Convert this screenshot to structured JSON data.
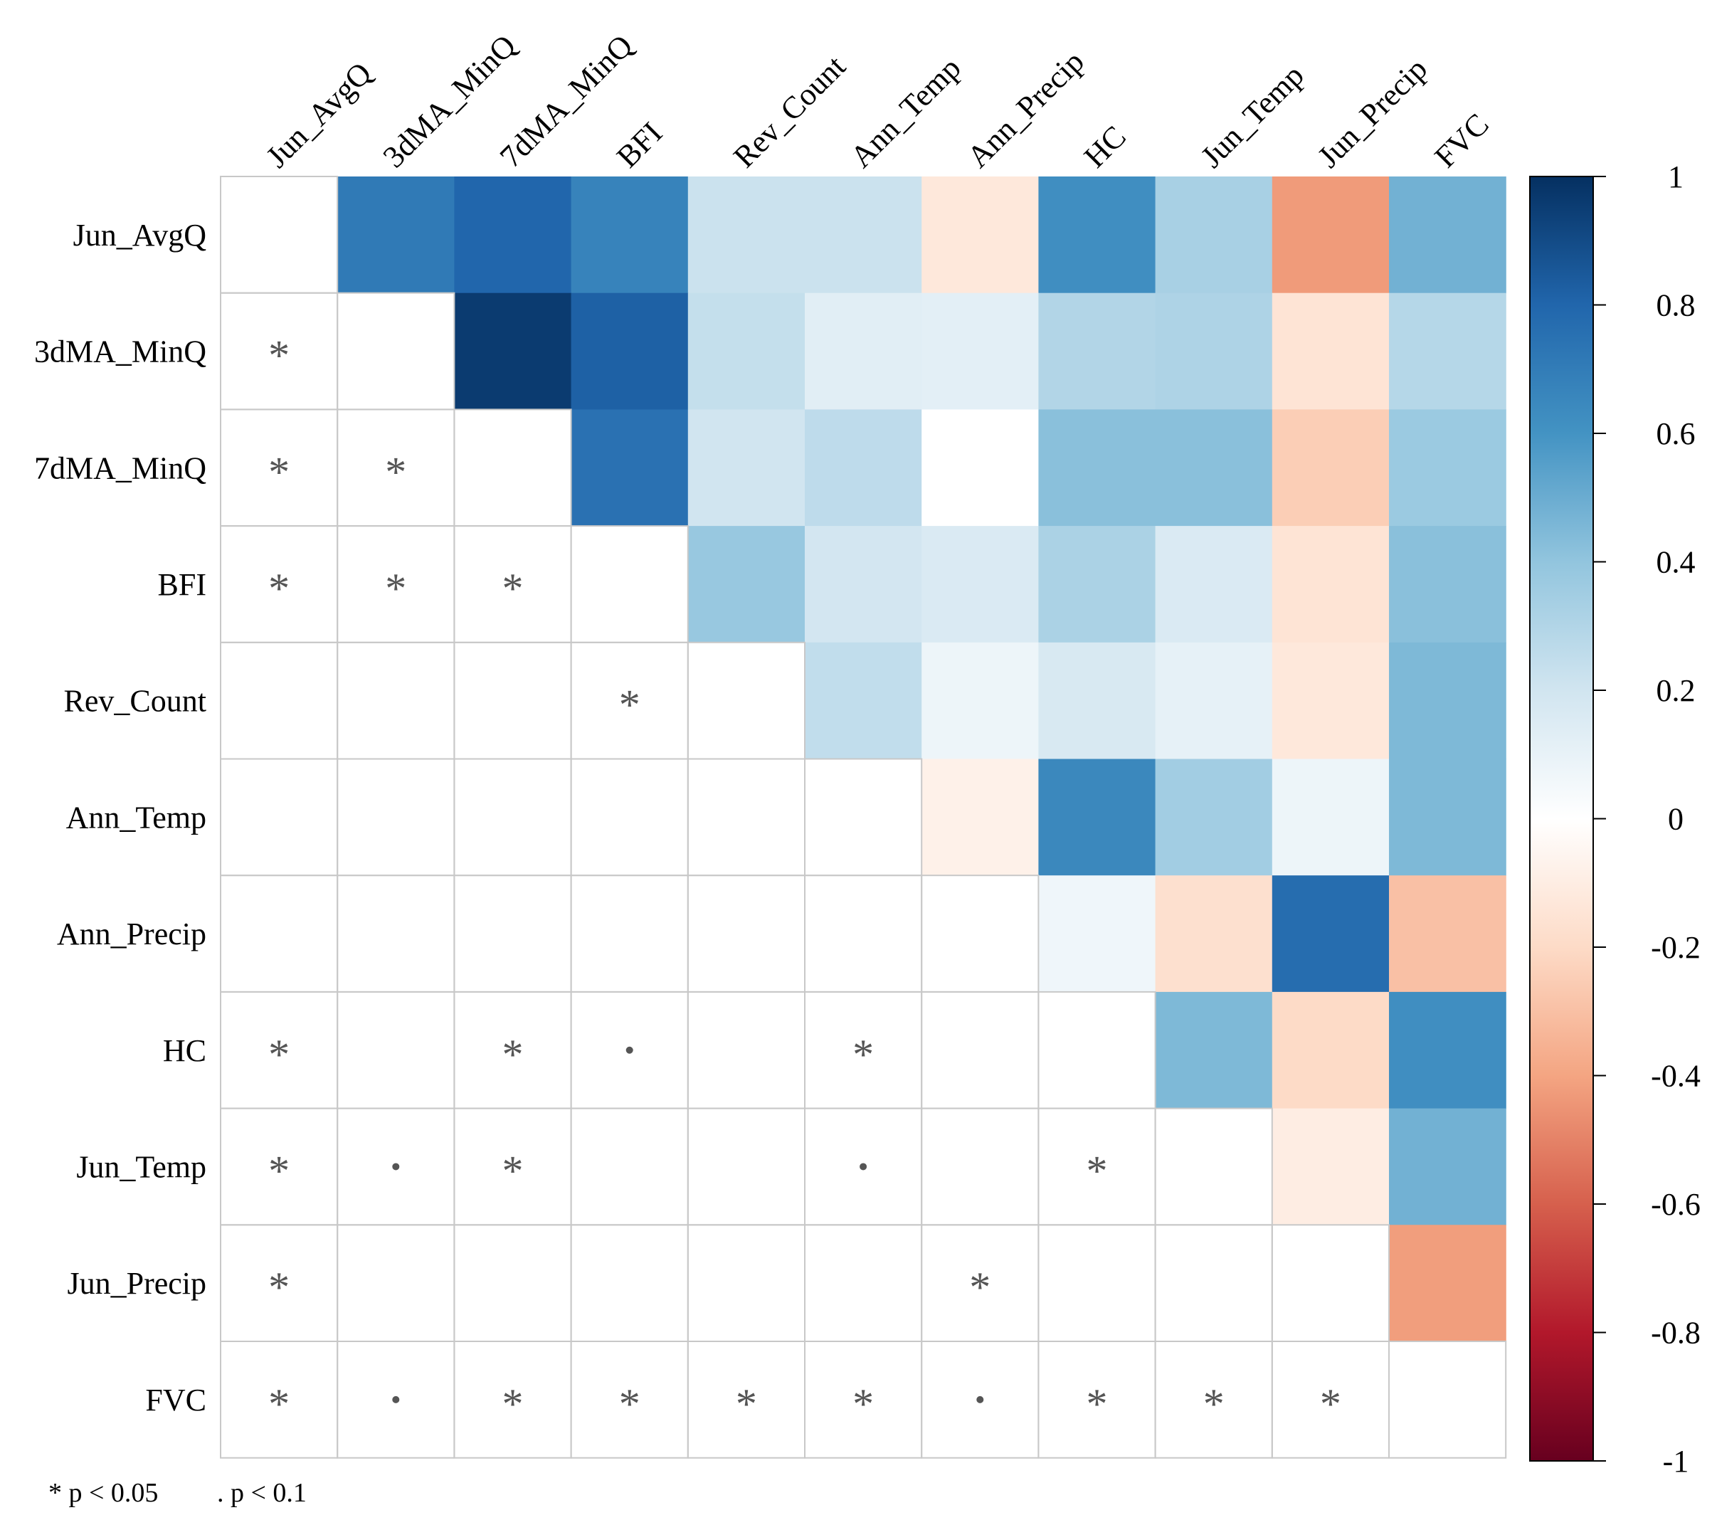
{
  "chart_data": {
    "type": "heatmap",
    "title": "",
    "variables": [
      "Jun_AvgQ",
      "3dMA_MinQ",
      "7dMA_MinQ",
      "BFI",
      "Rev_Count",
      "Ann_Temp",
      "Ann_Precip",
      "HC",
      "Jun_Temp",
      "Jun_Precip",
      "FVC"
    ],
    "upper_triangle_correlations": [
      [
        null,
        0.71,
        0.8,
        0.67,
        0.22,
        0.22,
        -0.13,
        0.62,
        0.33,
        -0.43,
        0.48
      ],
      [
        null,
        null,
        0.96,
        0.82,
        0.24,
        0.13,
        0.12,
        0.3,
        0.31,
        -0.15,
        0.29
      ],
      [
        null,
        null,
        null,
        0.75,
        0.2,
        0.26,
        0.0,
        0.42,
        0.42,
        -0.25,
        0.37
      ],
      [
        null,
        null,
        null,
        null,
        0.38,
        0.19,
        0.16,
        0.32,
        0.16,
        -0.15,
        0.42
      ],
      [
        null,
        null,
        null,
        null,
        null,
        0.25,
        0.08,
        0.17,
        0.11,
        -0.13,
        0.45
      ],
      [
        null,
        null,
        null,
        null,
        null,
        null,
        -0.08,
        0.65,
        0.35,
        0.08,
        0.45
      ],
      [
        null,
        null,
        null,
        null,
        null,
        null,
        null,
        0.07,
        -0.17,
        0.77,
        -0.3
      ],
      [
        null,
        null,
        null,
        null,
        null,
        null,
        null,
        null,
        0.45,
        -0.2,
        0.62
      ],
      [
        null,
        null,
        null,
        null,
        null,
        null,
        null,
        null,
        null,
        -0.1,
        0.48
      ],
      [
        null,
        null,
        null,
        null,
        null,
        null,
        null,
        null,
        null,
        null,
        -0.42
      ],
      [
        null,
        null,
        null,
        null,
        null,
        null,
        null,
        null,
        null,
        null,
        null
      ]
    ],
    "significance_lower_triangle": [
      [
        "",
        "",
        "",
        "",
        "",
        "",
        "",
        "",
        "",
        "",
        ""
      ],
      [
        "*",
        "",
        "",
        "",
        "",
        "",
        "",
        "",
        "",
        "",
        ""
      ],
      [
        "*",
        "*",
        "",
        "",
        "",
        "",
        "",
        "",
        "",
        "",
        ""
      ],
      [
        "*",
        "*",
        "*",
        "",
        "",
        "",
        "",
        "",
        "",
        "",
        ""
      ],
      [
        "",
        "",
        "",
        "*",
        "",
        "",
        "",
        "",
        "",
        "",
        ""
      ],
      [
        "",
        "",
        "",
        "",
        "",
        "",
        "",
        "",
        "",
        "",
        ""
      ],
      [
        "",
        "",
        "",
        "",
        "",
        "",
        "",
        "",
        "",
        "",
        ""
      ],
      [
        "*",
        "",
        "*",
        ".",
        "",
        "*",
        "",
        "",
        "",
        "",
        ""
      ],
      [
        "*",
        ".",
        "*",
        "",
        "",
        ".",
        "",
        "*",
        "",
        "",
        ""
      ],
      [
        "*",
        "",
        "",
        "",
        "",
        "",
        "*",
        "",
        "",
        "",
        ""
      ],
      [
        "*",
        ".",
        "*",
        "*",
        "*",
        "*",
        ".",
        "*",
        "*",
        "*",
        ""
      ]
    ],
    "colorbar": {
      "range": [
        -1,
        1
      ],
      "tick_values": [
        1,
        0.8,
        0.6,
        0.4,
        0.2,
        0,
        -0.2,
        -0.4,
        -0.6,
        -0.8,
        -1
      ],
      "tick_labels": [
        "1",
        "0.8",
        "0.6",
        "0.4",
        "0.2",
        "0",
        "-0.2",
        "-0.4",
        "-0.6",
        "-0.8",
        "-1"
      ],
      "palette": [
        "#67001f",
        "#b2182b",
        "#d6604d",
        "#f4a582",
        "#fddbc7",
        "#ffffff",
        "#d1e5f0",
        "#92c5de",
        "#4393c3",
        "#2166ac",
        "#053061"
      ]
    },
    "legend_notes": [
      "* p < 0.05",
      ". p < 0.1"
    ]
  },
  "colors": {
    "grid": "#c8c8c8",
    "significance_mark": "#555555"
  }
}
